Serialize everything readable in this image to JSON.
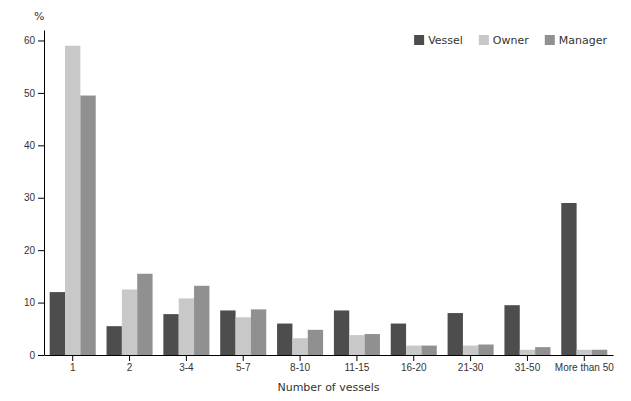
{
  "chart_data": {
    "type": "bar",
    "categories": [
      "1",
      "2",
      "3-4",
      "5-7",
      "8-10",
      "11-15",
      "16-20",
      "21-30",
      "31-50",
      "More than 50"
    ],
    "series": [
      {
        "name": "Vessel",
        "color": "#4d4d4d",
        "values": [
          12.0,
          5.5,
          7.8,
          8.5,
          6.0,
          8.5,
          6.0,
          8.0,
          9.5,
          29.0
        ]
      },
      {
        "name": "Owner",
        "color": "#c8c8c8",
        "values": [
          59.0,
          12.5,
          10.8,
          7.2,
          3.2,
          3.8,
          1.8,
          1.8,
          1.0,
          1.0
        ]
      },
      {
        "name": "Manager",
        "color": "#909090",
        "values": [
          49.5,
          15.5,
          13.2,
          8.7,
          4.8,
          4.0,
          1.8,
          2.0,
          1.5,
          1.0
        ]
      }
    ],
    "xlabel": "Number of vessels",
    "ylabel": "%",
    "ylim": [
      0,
      62
    ],
    "yticks": [
      0,
      10,
      20,
      30,
      40,
      50,
      60
    ],
    "grid": false,
    "legend": "upper right"
  }
}
